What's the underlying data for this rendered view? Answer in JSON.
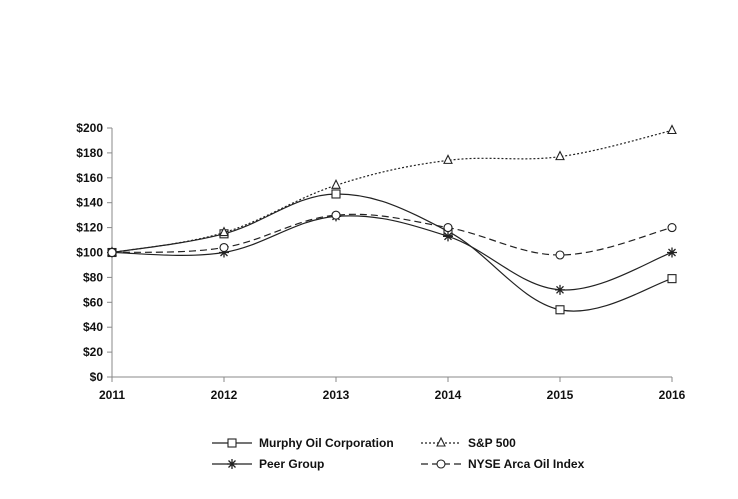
{
  "chart_data": {
    "type": "line",
    "title": "",
    "xlabel": "",
    "ylabel": "",
    "x": [
      "2011",
      "2012",
      "2013",
      "2014",
      "2015",
      "2016"
    ],
    "ylim": [
      0,
      200
    ],
    "y_ticks": [
      "$0",
      "$20",
      "$40",
      "$60",
      "$80",
      "$100",
      "$120",
      "$140",
      "$160",
      "$180",
      "$200"
    ],
    "grid": false,
    "legend_position": "bottom",
    "series": [
      {
        "name": "Murphy Oil Corporation",
        "values": [
          100,
          115,
          147,
          117,
          54,
          79
        ],
        "marker": "square",
        "dash": "solid",
        "color": "#222222"
      },
      {
        "name": "S&P 500",
        "values": [
          100,
          116,
          154,
          174,
          177,
          198
        ],
        "marker": "triangle",
        "dash": "dotted",
        "color": "#222222"
      },
      {
        "name": "Peer Group",
        "values": [
          100,
          100,
          129,
          113,
          70,
          100
        ],
        "marker": "star",
        "dash": "solid",
        "color": "#222222"
      },
      {
        "name": "NYSE Arca Oil Index",
        "values": [
          100,
          104,
          130,
          120,
          98,
          120
        ],
        "marker": "circle",
        "dash": "dashed",
        "color": "#222222"
      }
    ]
  }
}
